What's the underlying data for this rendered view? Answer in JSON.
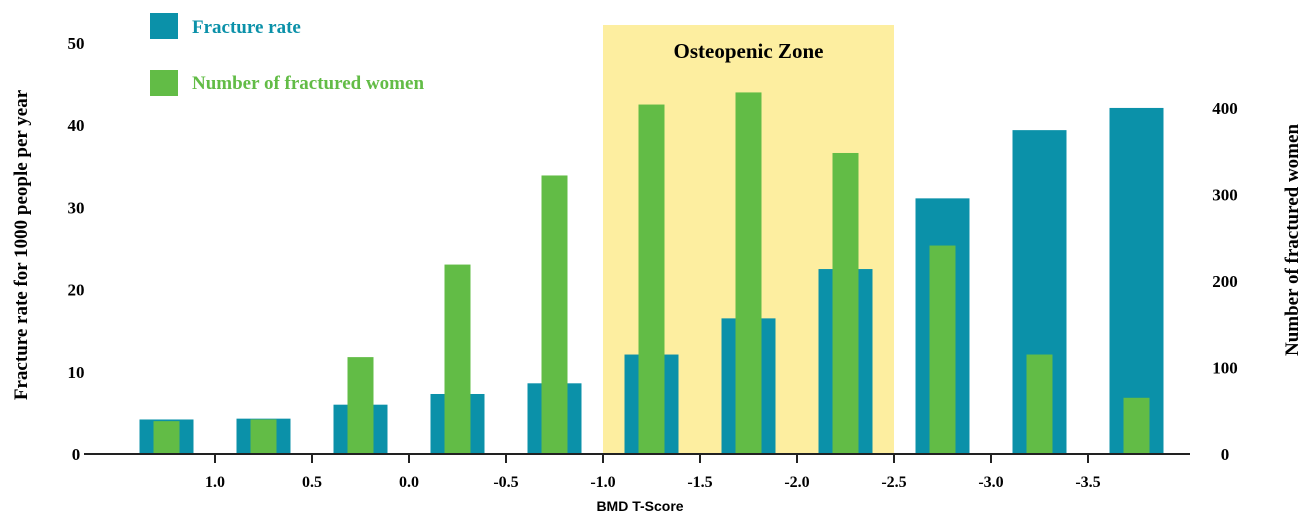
{
  "chart_data": {
    "type": "bar",
    "categories": [
      "1.25",
      "0.75",
      "0.25",
      "-0.25",
      "-0.75",
      "-1.25",
      "-1.75",
      "-2.25",
      "-2.75",
      "-3.25",
      "-3.75"
    ],
    "series": [
      {
        "name": "Fracture rate",
        "axis": "left",
        "color": "#0b91a9",
        "values": [
          4.2,
          4.3,
          6.0,
          7.3,
          8.6,
          12.1,
          16.5,
          22.5,
          31.1,
          39.4,
          42.1
        ]
      },
      {
        "name": "Number of fractured women",
        "axis": "right",
        "color": "#62bc46",
        "values": [
          38,
          40,
          112,
          219,
          322,
          404,
          418,
          348,
          241,
          115,
          65
        ]
      }
    ],
    "xlabel": "BMD T-Score",
    "ylabel_left": "Fracture rate for 1000 people per year",
    "ylabel_right": "Number of fractured women",
    "ylim_left": [
      0,
      50
    ],
    "ylim_right": [
      0,
      400
    ],
    "yticks_left": [
      "0",
      "10",
      "20",
      "30",
      "40",
      "50"
    ],
    "yticks_right": [
      "0",
      "100",
      "200",
      "300",
      "400"
    ],
    "xticks": [
      {
        "value": 1.0,
        "label": "1.0"
      },
      {
        "value": 0.5,
        "label": "0.5"
      },
      {
        "value": 0.0,
        "label": "0.0"
      },
      {
        "value": -0.5,
        "label": "-0.5"
      },
      {
        "value": -1.0,
        "label": "-1.0"
      },
      {
        "value": -1.5,
        "label": "-1.5"
      },
      {
        "value": -2.0,
        "label": "-2.0"
      },
      {
        "value": -2.5,
        "label": "-2.5"
      },
      {
        "value": -3.0,
        "label": "-3.0"
      },
      {
        "value": -3.5,
        "label": "-3.5"
      }
    ],
    "zone": {
      "label": "Osteopenic Zone",
      "from": -1.0,
      "to": -2.5,
      "color": "#fdeea0"
    },
    "legend": "top-left",
    "grid": false
  }
}
